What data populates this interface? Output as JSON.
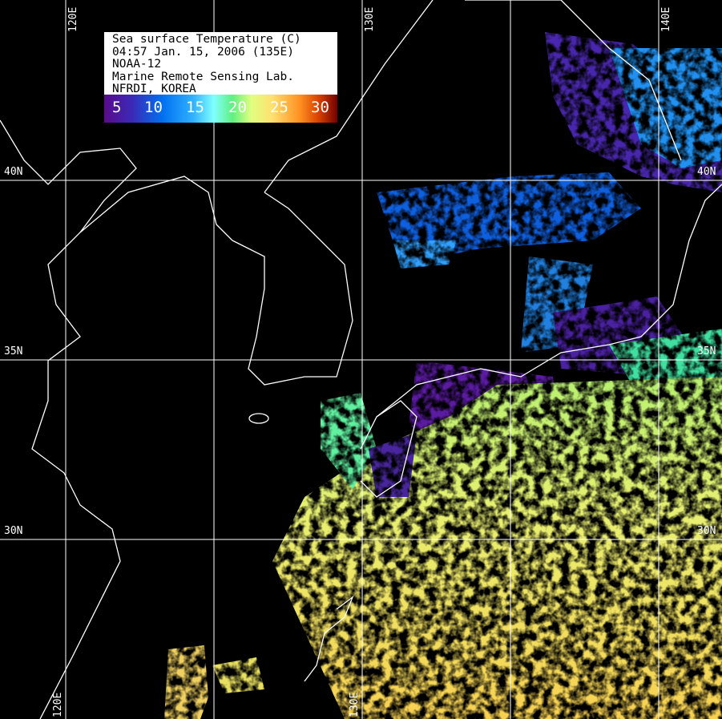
{
  "legend": {
    "lines": [
      "Sea surface Temperature (C)",
      "04:57 Jan. 15, 2006 (135E)",
      "NOAA-12",
      "Marine Remote Sensing Lab.",
      "NFRDI, KOREA"
    ],
    "colorbar_ticks": [
      "5",
      "10",
      "15",
      "20",
      "25",
      "30"
    ],
    "colorbar_colors": [
      "#5a0a8c",
      "#0070f0",
      "#80ffff",
      "#60f080",
      "#ffe070",
      "#ff9020",
      "#700000"
    ]
  },
  "grid": {
    "longitude_labels": [
      "120E",
      "130E",
      "140E"
    ],
    "latitude_labels": [
      "40N",
      "35N",
      "30N"
    ],
    "bottom_labels": [
      "120E",
      "130E"
    ]
  },
  "colors": {
    "background": "#000000",
    "coastline": "#ffffff",
    "gridline": "#ffffff"
  }
}
